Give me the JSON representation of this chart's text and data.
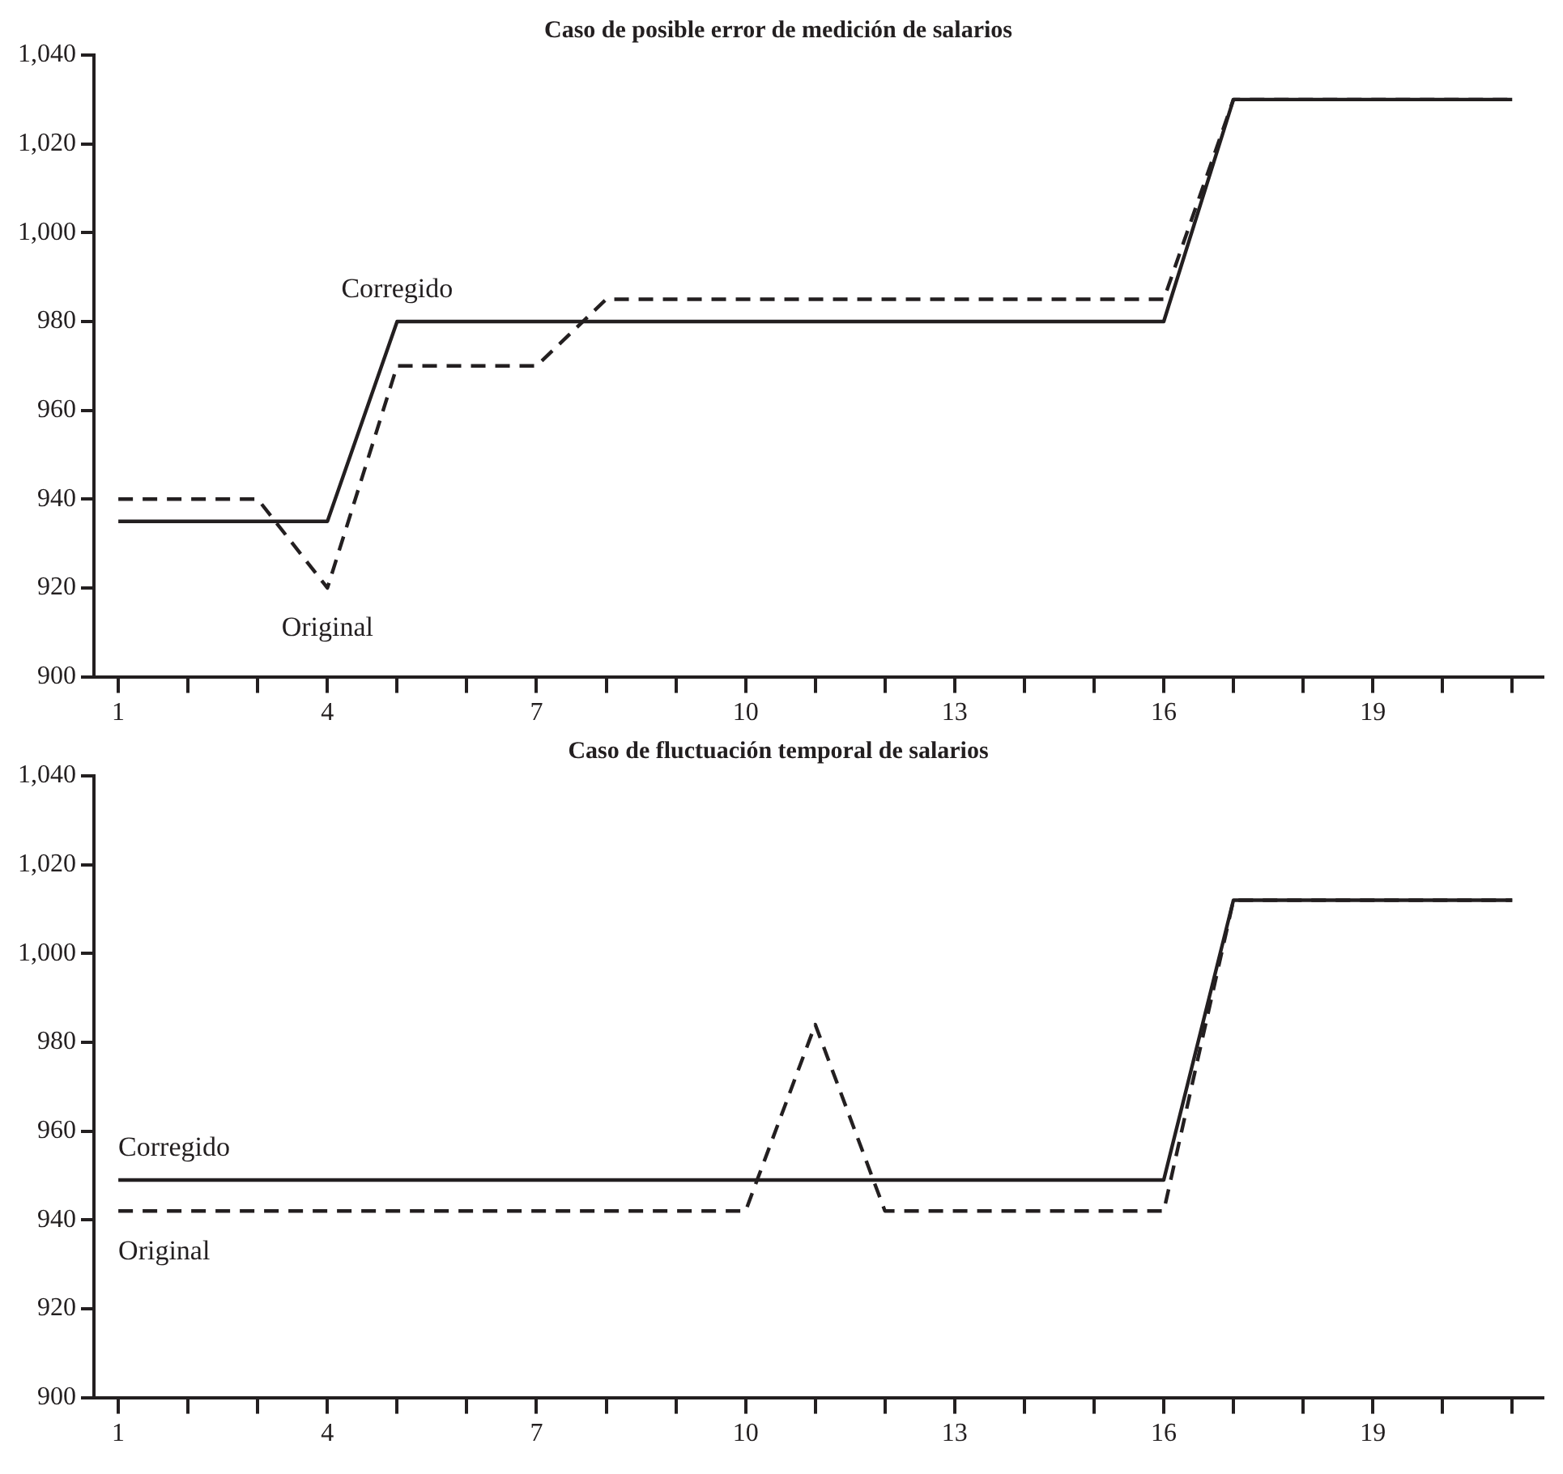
{
  "chart_data": [
    {
      "type": "line",
      "title": "Caso de posible error de medición de salarios",
      "x": [
        1,
        2,
        3,
        4,
        5,
        6,
        7,
        8,
        9,
        10,
        11,
        12,
        13,
        14,
        15,
        16,
        17,
        18,
        19,
        20,
        21
      ],
      "series": [
        {
          "name": "Corregido",
          "color": "#231f20",
          "line_style": "solid",
          "values": [
            935,
            935,
            935,
            935,
            980,
            980,
            980,
            980,
            980,
            980,
            980,
            980,
            980,
            980,
            980,
            980,
            1030,
            1030,
            1030,
            1030,
            1030
          ]
        },
        {
          "name": "Original",
          "color": "#231f20",
          "line_style": "dashed",
          "values": [
            940,
            940,
            940,
            920,
            970,
            970,
            970,
            985,
            985,
            985,
            985,
            985,
            985,
            985,
            985,
            985,
            1030,
            1030,
            1030,
            1030,
            1030
          ]
        }
      ],
      "xlim": [
        0.65,
        21.45
      ],
      "xticks": [
        1,
        {
          "value": 2,
          "label": null
        },
        {
          "value": 3,
          "label": null
        },
        4,
        {
          "value": 5,
          "label": null
        },
        {
          "value": 6,
          "label": null
        },
        7,
        {
          "value": 8,
          "label": null
        },
        {
          "value": 9,
          "label": null
        },
        10,
        {
          "value": 11,
          "label": null
        },
        {
          "value": 12,
          "label": null
        },
        13,
        {
          "value": 14,
          "label": null
        },
        {
          "value": 15,
          "label": null
        },
        16,
        {
          "value": 17,
          "label": null
        },
        {
          "value": 18,
          "label": null
        },
        19,
        {
          "value": 20,
          "label": null
        },
        {
          "value": 21,
          "label": null
        }
      ],
      "ylim": [
        900,
        1040
      ],
      "yticks": [
        900,
        920,
        940,
        960,
        980,
        {
          "value": 1000,
          "label": "1,000"
        },
        {
          "value": 1020,
          "label": "1,020"
        },
        {
          "value": 1040,
          "label": "1,040"
        }
      ],
      "grid": false,
      "legend": false,
      "marker": "none"
    },
    {
      "type": "line",
      "title": "Caso de fluctuación temporal de salarios",
      "x": [
        1,
        2,
        3,
        4,
        5,
        6,
        7,
        8,
        9,
        10,
        11,
        12,
        13,
        14,
        15,
        16,
        17,
        18,
        19,
        20,
        21
      ],
      "series": [
        {
          "name": "Corregido",
          "color": "#231f20",
          "line_style": "solid",
          "values": [
            949,
            949,
            949,
            949,
            949,
            949,
            949,
            949,
            949,
            949,
            949,
            949,
            949,
            949,
            949,
            949,
            1012,
            1012,
            1012,
            1012,
            1012
          ]
        },
        {
          "name": "Original",
          "color": "#231f20",
          "line_style": "dashed",
          "values": [
            942,
            942,
            942,
            942,
            942,
            942,
            942,
            942,
            942,
            942,
            984,
            942,
            942,
            942,
            942,
            942,
            1012,
            1012,
            1012,
            1012,
            1012
          ]
        }
      ],
      "xlim": [
        0.65,
        21.45
      ],
      "xticks": [
        1,
        {
          "value": 2,
          "label": null
        },
        {
          "value": 3,
          "label": null
        },
        4,
        {
          "value": 5,
          "label": null
        },
        {
          "value": 6,
          "label": null
        },
        7,
        {
          "value": 8,
          "label": null
        },
        {
          "value": 9,
          "label": null
        },
        10,
        {
          "value": 11,
          "label": null
        },
        {
          "value": 12,
          "label": null
        },
        13,
        {
          "value": 14,
          "label": null
        },
        {
          "value": 15,
          "label": null
        },
        16,
        {
          "value": 17,
          "label": null
        },
        {
          "value": 18,
          "label": null
        },
        19,
        {
          "value": 20,
          "label": null
        },
        {
          "value": 21,
          "label": null
        }
      ],
      "ylim": [
        900,
        1040
      ],
      "yticks": [
        900,
        920,
        940,
        960,
        980,
        {
          "value": 1000,
          "label": "1,000"
        },
        {
          "value": 1020,
          "label": "1,020"
        },
        {
          "value": 1040,
          "label": "1,040"
        }
      ],
      "grid": false,
      "legend": false,
      "marker": "none"
    }
  ]
}
